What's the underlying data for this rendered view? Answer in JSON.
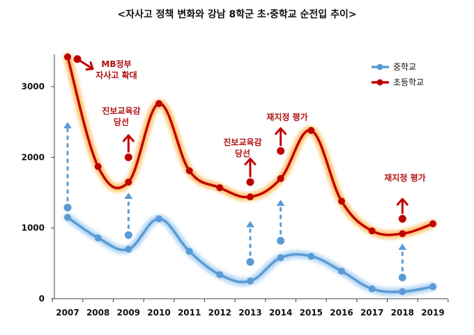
{
  "chart_data": {
    "type": "line",
    "title": "<자사고 정책 변화와 강남 8학군 초·중학교 순전입 추이>",
    "xlabel": "",
    "ylabel": "",
    "ylim": [
      0,
      3400
    ],
    "y_ticks": [
      0,
      1000,
      2000,
      3000
    ],
    "x": [
      "2007",
      "2008",
      "2009",
      "2010",
      "2011",
      "2012",
      "2013",
      "2014",
      "2015",
      "2016",
      "2017",
      "2018",
      "2019"
    ],
    "series": [
      {
        "name": "중학교",
        "color": "#5b9bd5",
        "values": [
          1150,
          860,
          700,
          1130,
          670,
          340,
          250,
          580,
          600,
          390,
          140,
          100,
          170
        ]
      },
      {
        "name": "초등학교",
        "color": "#c00000",
        "values": [
          3420,
          1870,
          1650,
          2760,
          1810,
          1570,
          1440,
          1700,
          2380,
          1380,
          960,
          920,
          1060
        ]
      }
    ],
    "legend_position": "top-right",
    "grid": false,
    "annotations": [
      {
        "label": "MB정부\n자사고 확대",
        "series": "초등학교",
        "x_index": 0.4,
        "type": "down-arrow",
        "arrow_start": 3380,
        "arrow_end": 3260
      },
      {
        "label": "진보교육감\n당선",
        "series": "초등학교",
        "x_index": 2,
        "type": "up-arrow",
        "arrow_start": 2000,
        "arrow_end": 2310
      },
      {
        "label": "진보교육감\n당선",
        "series": "초등학교",
        "x_index": 6,
        "type": "up-arrow",
        "arrow_start": 1650,
        "arrow_end": 1980
      },
      {
        "label": "재지정 평가",
        "series": "초등학교",
        "x_index": 7,
        "type": "up-arrow",
        "arrow_start": 2090,
        "arrow_end": 2410
      },
      {
        "label": "재지정 평가",
        "series": "초등학교",
        "x_index": 11,
        "type": "up-arrow",
        "arrow_start": 1130,
        "arrow_end": 1410
      },
      {
        "label": "",
        "series": "중학교",
        "x_index": 0,
        "type": "dashed-up",
        "arrow_start": 1290,
        "arrow_end": 2500
      },
      {
        "label": "",
        "series": "중학교",
        "x_index": 2,
        "type": "dashed-up",
        "arrow_start": 900,
        "arrow_end": 1500
      },
      {
        "label": "",
        "series": "중학교",
        "x_index": 6,
        "type": "dashed-up",
        "arrow_start": 520,
        "arrow_end": 1100
      },
      {
        "label": "",
        "series": "중학교",
        "x_index": 7,
        "type": "dashed-up",
        "arrow_start": 820,
        "arrow_end": 1400
      },
      {
        "label": "",
        "series": "중학교",
        "x_index": 11,
        "type": "dashed-up",
        "arrow_start": 300,
        "arrow_end": 780
      }
    ]
  }
}
